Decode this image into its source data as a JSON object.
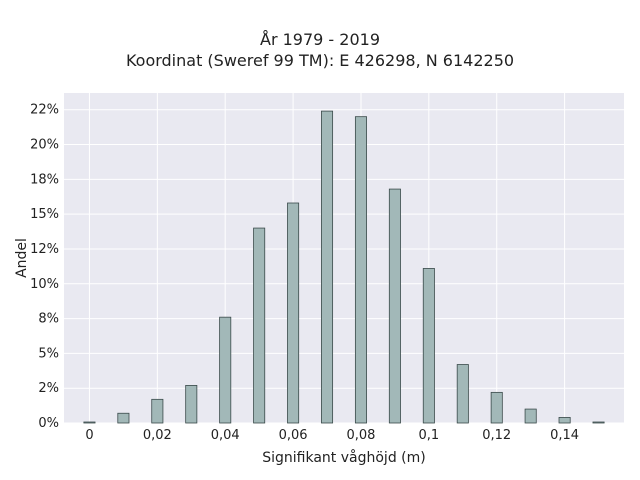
{
  "chart_data": {
    "type": "bar",
    "title": "År 1979 - 2019",
    "subtitle": "Koordinat (Sweref 99 TM): E 426298, N 6142250",
    "xlabel": "Signifikant våghöjd (m)",
    "ylabel": "Andel",
    "x": [
      0,
      0.01,
      0.02,
      0.03,
      0.04,
      0.05,
      0.06,
      0.07,
      0.08,
      0.09,
      0.1,
      0.11,
      0.12,
      0.13,
      0.14,
      0.15
    ],
    "values": [
      0.05,
      0.7,
      1.7,
      2.7,
      7.6,
      14.0,
      15.8,
      22.4,
      22.0,
      16.8,
      11.1,
      4.2,
      2.2,
      1.0,
      0.4,
      0.05
    ],
    "xlim": [
      -0.0075,
      0.1575
    ],
    "ylim": [
      0,
      23.7
    ],
    "x_ticks": [
      0,
      0.02,
      0.04,
      0.06,
      0.08,
      0.1,
      0.12,
      0.14
    ],
    "x_tick_labels": [
      "0",
      "0,02",
      "0,04",
      "0,06",
      "0,08",
      "0,1",
      "0,12",
      "0,14"
    ],
    "y_ticks": [
      0,
      2.5,
      5,
      7.5,
      10,
      12.5,
      15,
      17.5,
      20,
      22.5
    ],
    "y_tick_labels": [
      "0%",
      "2%",
      "5%",
      "8%",
      "10%",
      "12%",
      "15%",
      "18%",
      "20%",
      "22%"
    ],
    "grid": true,
    "legend": "none",
    "colors": {
      "bar_fill": "#a2b8b8",
      "bar_stroke": "#3a4a4a",
      "plot_bg": "#e9e9f1",
      "grid": "#ffffff"
    }
  }
}
